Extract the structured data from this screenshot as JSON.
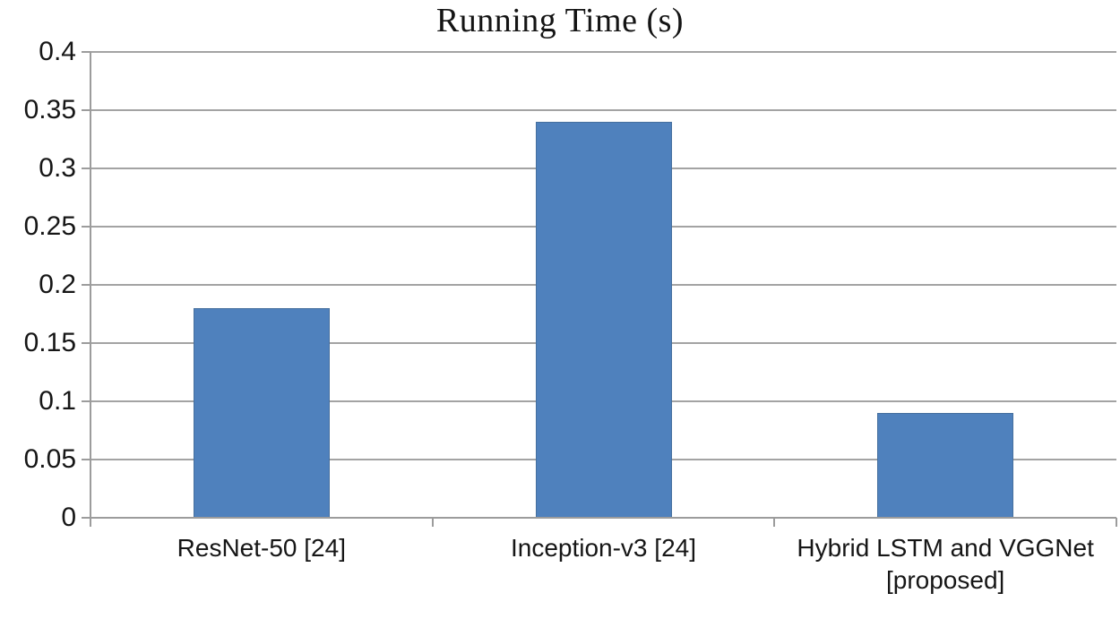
{
  "chart_data": {
    "type": "bar",
    "title": "Running Time (s)",
    "categories": [
      "ResNet-50 [24]",
      "Inception-v3 [24]",
      "Hybrid LSTM and VGGNet [proposed]"
    ],
    "values": [
      0.18,
      0.34,
      0.09
    ],
    "xlabel": "",
    "ylabel": "",
    "ylim": [
      0,
      0.4
    ],
    "yticks": [
      0,
      0.05,
      0.1,
      0.15,
      0.2,
      0.25,
      0.3,
      0.35,
      0.4
    ],
    "ytick_labels": [
      "0",
      "0.05",
      "0.1",
      "0.15",
      "0.2",
      "0.25",
      "0.3",
      "0.35",
      "0.4"
    ],
    "grid": true,
    "legend": false,
    "colors": {
      "bar_fill": "#4f81bd",
      "bar_border": "#456f9e",
      "gridline": "#a3a3a3",
      "axis": "#9c9c9c",
      "text": "#161616"
    }
  }
}
